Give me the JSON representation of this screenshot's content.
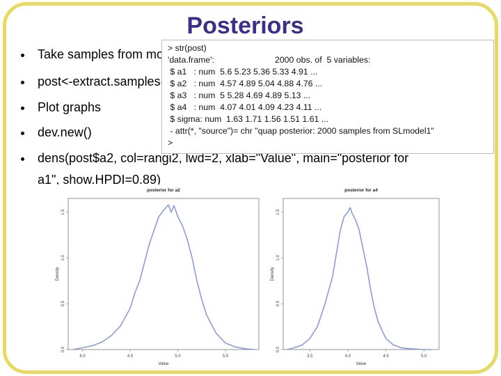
{
  "slide": {
    "title": "Posteriors",
    "bullets": [
      "Take samples from model",
      "post<-extract.samples(SLmodel1)",
      "Plot graphs",
      "dev.new()",
      "dens(post$a2, col=rangi2, lwd=2, xlab=\"Value\", main=\"posterior for",
      "a1\", show.HPDI=0.89)"
    ]
  },
  "console": {
    "prompt_cmd": "> str(post)",
    "line_df_a": "'data.frame':",
    "line_df_b": "2000 obs. of  5 variables:",
    "line_a1": " $ a1   : num  5.6 5.23 5.36 5.33 4.91 ...",
    "line_a2": " $ a2   : num  4.57 4.89 5.04 4.88 4.76 ...",
    "line_a3": " $ a3   : num  5 5.28 4.69 4.89 5.13 ...",
    "line_a4": " $ a4   : num  4.07 4.01 4.09 4.23 4.11 ...",
    "line_sigma": " $ sigma: num  1.63 1.71 1.56 1.51 1.61 ...",
    "line_attr": " - attr(*, \"source\")= chr \"quap posterior: 2000 samples from SLmodel1\"",
    "prompt_end": ">"
  },
  "chart_data": [
    {
      "type": "line",
      "title": "posterior for a2",
      "xlabel": "Value",
      "ylabel": "Density",
      "xlim": [
        3.85,
        5.85
      ],
      "ylim": [
        0,
        1.65
      ],
      "xticks": [
        "4.0",
        "4.5",
        "5.0",
        "5.5"
      ],
      "yticks": [
        "0.0",
        "0.5",
        "1.0",
        "1.5"
      ],
      "x": [
        3.9,
        4.0,
        4.1,
        4.2,
        4.3,
        4.4,
        4.5,
        4.55,
        4.6,
        4.65,
        4.7,
        4.75,
        4.8,
        4.85,
        4.9,
        4.93,
        4.96,
        5.0,
        5.05,
        5.1,
        5.15,
        5.2,
        5.25,
        5.3,
        5.4,
        5.5,
        5.6,
        5.7,
        5.8
      ],
      "y": [
        0.0,
        0.02,
        0.04,
        0.08,
        0.15,
        0.26,
        0.45,
        0.62,
        0.75,
        0.95,
        1.15,
        1.3,
        1.45,
        1.52,
        1.58,
        1.5,
        1.57,
        1.45,
        1.35,
        1.2,
        1.0,
        0.75,
        0.55,
        0.38,
        0.18,
        0.07,
        0.03,
        0.01,
        0.0
      ],
      "grid": false
    },
    {
      "type": "line",
      "title": "posterior for a4",
      "xlabel": "Value",
      "ylabel": "Density",
      "xlim": [
        3.15,
        5.2
      ],
      "ylim": [
        0,
        1.65
      ],
      "xticks": [
        "3.5",
        "4.0",
        "4.5",
        "5.0"
      ],
      "yticks": [
        "0.0",
        "0.5",
        "1.0",
        "1.5"
      ],
      "x": [
        3.2,
        3.3,
        3.4,
        3.5,
        3.6,
        3.7,
        3.8,
        3.85,
        3.9,
        3.95,
        4.0,
        4.03,
        4.06,
        4.1,
        4.15,
        4.2,
        4.25,
        4.3,
        4.35,
        4.4,
        4.5,
        4.6,
        4.7,
        4.8,
        5.0,
        5.1
      ],
      "y": [
        0.0,
        0.02,
        0.05,
        0.12,
        0.25,
        0.5,
        0.8,
        1.05,
        1.3,
        1.45,
        1.5,
        1.55,
        1.48,
        1.42,
        1.3,
        1.1,
        0.9,
        0.65,
        0.45,
        0.3,
        0.12,
        0.05,
        0.02,
        0.01,
        0.0,
        0.0
      ],
      "grid": false
    }
  ]
}
